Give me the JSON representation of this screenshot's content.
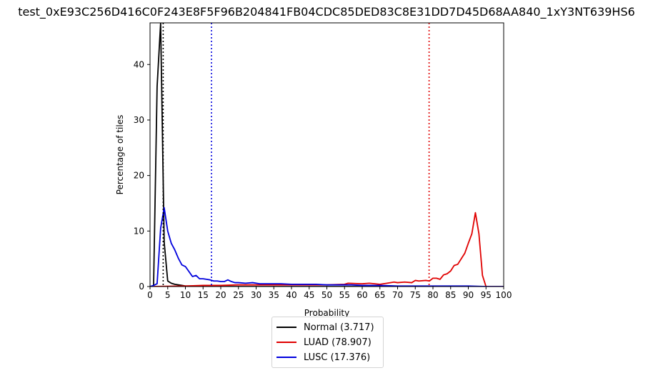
{
  "title": "test_0xE93C256D416C0F243E8F5F96B204841FB04CDC85DED83C8E31DD7D45D68AA840_1xY3NT639HS6",
  "chart_data": {
    "type": "line",
    "xlabel": "Probability",
    "ylabel": "Percentage of tiles",
    "xlim": [
      0,
      100
    ],
    "ylim": [
      0,
      47.5
    ],
    "xticks": [
      0,
      5,
      10,
      15,
      20,
      25,
      30,
      35,
      40,
      45,
      50,
      55,
      60,
      65,
      70,
      75,
      80,
      85,
      90,
      95,
      100
    ],
    "yticks": [
      0,
      10,
      20,
      30,
      40
    ],
    "legend_position": "lower-center-outside",
    "series": [
      {
        "name": "Normal (3.717)",
        "color": "#000000",
        "threshold": 3.717,
        "x": [
          0,
          1,
          2,
          3,
          4,
          5,
          6,
          7,
          8,
          9,
          10,
          11,
          12,
          13,
          14,
          15,
          20,
          30,
          40,
          50,
          60,
          70,
          80,
          90,
          95,
          100
        ],
        "values": [
          0,
          0,
          36,
          47.5,
          8,
          1,
          0.6,
          0.4,
          0.3,
          0.2,
          0.1,
          0.1,
          0.1,
          0.05,
          0.05,
          0,
          0,
          0,
          0,
          0,
          0,
          0,
          0,
          0,
          0,
          0
        ]
      },
      {
        "name": "LUAD (78.907)",
        "color": "#e00000",
        "threshold": 78.907,
        "x": [
          0,
          10,
          15,
          20,
          25,
          30,
          35,
          40,
          45,
          50,
          55,
          56,
          60,
          62,
          65,
          67,
          69,
          70,
          72,
          74,
          75,
          76,
          78,
          79,
          80,
          81,
          82,
          83,
          84,
          85,
          86,
          87,
          88,
          89,
          90,
          91,
          92,
          93,
          94,
          95,
          100
        ],
        "values": [
          0,
          0.1,
          0.2,
          0.2,
          0.3,
          0.3,
          0.3,
          0.3,
          0.3,
          0.3,
          0.4,
          0.6,
          0.5,
          0.6,
          0.4,
          0.6,
          0.8,
          0.7,
          0.8,
          0.7,
          1.1,
          1.0,
          1.1,
          1.0,
          1.5,
          1.5,
          1.3,
          2.1,
          2.3,
          2.8,
          3.8,
          4.0,
          5.0,
          6.0,
          7.8,
          9.5,
          13.3,
          9.5,
          2.0,
          0,
          0
        ]
      },
      {
        "name": "LUSC (17.376)",
        "color": "#0000dd",
        "threshold": 17.376,
        "x": [
          0,
          1,
          2,
          3,
          4,
          5,
          6,
          7,
          8,
          9,
          10,
          11,
          12,
          13,
          14,
          15,
          16,
          17,
          18,
          19,
          20,
          21,
          22,
          23,
          24,
          25,
          27,
          29,
          31,
          33,
          35,
          37,
          40,
          43,
          45,
          47,
          50,
          53,
          55,
          57,
          60,
          65,
          70,
          75,
          80,
          85,
          90,
          95,
          100
        ],
        "values": [
          0,
          0.2,
          0.5,
          10.5,
          14.2,
          10,
          7.8,
          6.6,
          5.1,
          3.9,
          3.6,
          2.7,
          1.8,
          2.0,
          1.4,
          1.4,
          1.3,
          1.2,
          1.0,
          1.0,
          0.9,
          0.9,
          1.2,
          0.9,
          0.7,
          0.7,
          0.6,
          0.7,
          0.5,
          0.5,
          0.5,
          0.5,
          0.4,
          0.4,
          0.4,
          0.4,
          0.3,
          0.3,
          0.3,
          0.3,
          0.2,
          0.2,
          0.1,
          0.1,
          0.1,
          0.1,
          0.1,
          0,
          0
        ]
      }
    ]
  }
}
